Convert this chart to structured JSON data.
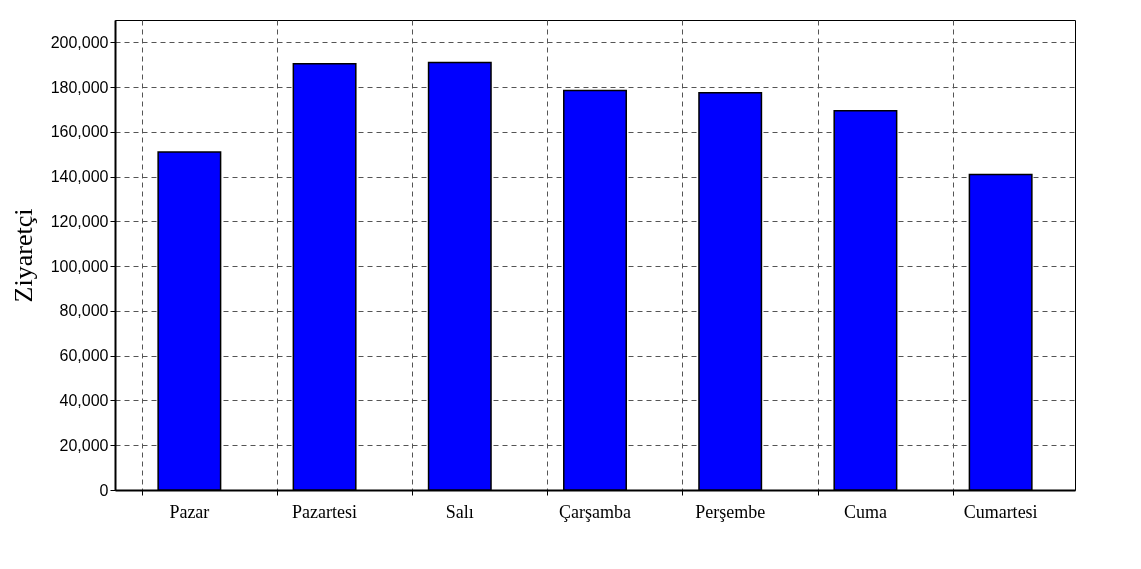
{
  "chart_data": {
    "type": "bar",
    "ylabel": "Ziyaretçi",
    "categories": [
      "Pazar",
      "Pazartesi",
      "Salı",
      "Çarşamba",
      "Perşembe",
      "Cuma",
      "Cumartesi"
    ],
    "values": [
      151000,
      190500,
      191000,
      178500,
      177500,
      169500,
      141000
    ],
    "color": "#0000ff",
    "ylim": [
      0,
      210000
    ],
    "yticks": [
      0,
      {
        "value": 20000,
        "label": "20,000"
      },
      {
        "value": 40000,
        "label": "40,000"
      },
      {
        "value": 60000,
        "label": "60,000"
      },
      {
        "value": 80000,
        "label": "80,000"
      },
      {
        "value": 100000,
        "label": "100,000"
      },
      {
        "value": 120000,
        "label": "120,000"
      },
      {
        "value": 140000,
        "label": "140,000"
      },
      {
        "value": 160000,
        "label": "160,000"
      },
      {
        "value": 180000,
        "label": "180,000"
      },
      {
        "value": 200000,
        "label": "200,000"
      }
    ],
    "grid": true
  }
}
